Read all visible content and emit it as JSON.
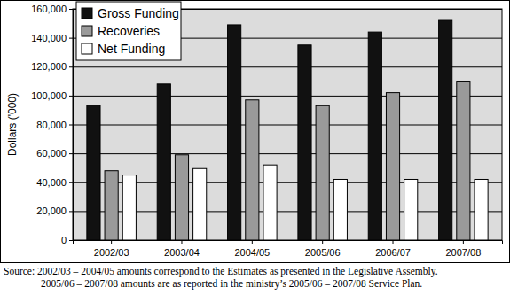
{
  "chart_data": {
    "type": "bar",
    "y_label": "Dollars ('000)",
    "categories": [
      "2002/03",
      "2003/04",
      "2004/05",
      "2005/06",
      "2006/07",
      "2007/08"
    ],
    "series": [
      {
        "name": "Gross Funding",
        "color": "#111111",
        "values": [
          93000,
          108000,
          149000,
          135000,
          144000,
          152000
        ]
      },
      {
        "name": "Recoveries",
        "color": "#9a9a9a",
        "values": [
          48000,
          59000,
          97000,
          93000,
          102000,
          110000
        ]
      },
      {
        "name": "Net Funding",
        "color": "#ffffff",
        "values": [
          45000,
          49500,
          52000,
          42000,
          42000,
          42000
        ]
      }
    ],
    "ylim": [
      0,
      160000
    ],
    "yticks": [
      0,
      {
        "value": 20000,
        "label": "20,000"
      },
      {
        "value": 40000,
        "label": "40,000"
      },
      {
        "value": 60000,
        "label": "60,000"
      },
      {
        "value": 80000,
        "label": "80,000"
      },
      {
        "value": 100000,
        "label": "100,000"
      },
      {
        "value": 120000,
        "label": "120,000"
      },
      {
        "value": 140000,
        "label": "140,000"
      },
      {
        "value": 160000,
        "label": "160,000"
      }
    ],
    "grid": true,
    "legend": "top-left",
    "annotations": [
      "Source: 2002/03 – 2004/05 amounts correspond to the Estimates as presented in the Legislative Assembly.",
      "2005/06 – 2007/08 amounts are as reported in the ministry’s 2005/06 – 2007/08 Service Plan."
    ]
  }
}
